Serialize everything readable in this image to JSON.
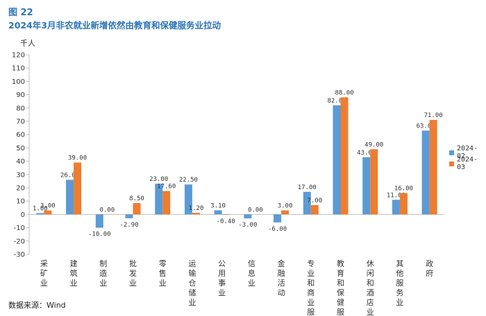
{
  "figure_label": "图 22",
  "title": "2024年3月非农就业新增依然由教育和保健服务业拉动",
  "unit": "千人",
  "source": "数据来源：Wind",
  "colors": {
    "series1": "#5b9bd5",
    "series2": "#ed7d31",
    "axis": "#bfbfbf",
    "text": "#333333"
  },
  "chart_data": {
    "type": "bar",
    "ylabel": "千人",
    "ylim": [
      -30,
      120
    ],
    "ytick_step": 10,
    "grid": false,
    "legend_position": "right",
    "categories": [
      "采矿业",
      "建筑业",
      "制造业",
      "批发业",
      "零售业",
      "运输仓储业",
      "公用事业",
      "信息业",
      "金融活动",
      "专业和商业服务",
      "教育和保健服务",
      "休闲和酒店业",
      "其他服务业",
      "政府"
    ],
    "series": [
      {
        "name": "2024-02",
        "values": [
          1.0,
          26.0,
          -10.0,
          -2.9,
          23.0,
          22.5,
          3.1,
          -3.0,
          -6.0,
          17.0,
          82.0,
          43.0,
          11.0,
          63.0
        ]
      },
      {
        "name": "2024-03",
        "values": [
          3.0,
          39.0,
          0.0,
          8.5,
          17.6,
          1.2,
          -0.4,
          0.0,
          3.0,
          7.0,
          88.0,
          49.0,
          16.0,
          71.0
        ]
      }
    ]
  }
}
